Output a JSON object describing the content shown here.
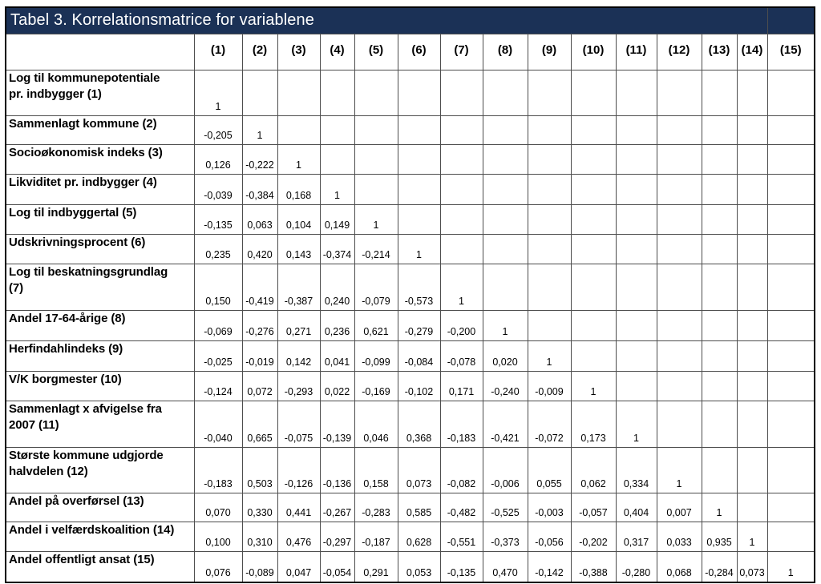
{
  "table": {
    "title": "Tabel 3. Korrelationsmatrice for variablene",
    "corner_header": "",
    "column_headers": [
      "(1)",
      "(2)",
      "(3)",
      "(4)",
      "(5)",
      "(6)",
      "(7)",
      "(8)",
      "(9)",
      "(10)",
      "(11)",
      "(12)",
      "(13)",
      "(14)",
      "(15)"
    ],
    "rows": [
      {
        "label": "Log til kommunepotentiale\npr. indbygger (1)",
        "values": [
          "1"
        ]
      },
      {
        "label": "Sammenlagt kommune (2)",
        "values": [
          "-0,205",
          "1"
        ]
      },
      {
        "label": "Socioøkonomisk indeks (3)",
        "values": [
          "0,126",
          "-0,222",
          "1"
        ]
      },
      {
        "label": "Likviditet pr. indbygger (4)",
        "values": [
          "-0,039",
          "-0,384",
          "0,168",
          "1"
        ]
      },
      {
        "label": "Log til indbyggertal (5)",
        "values": [
          "-0,135",
          "0,063",
          "0,104",
          "0,149",
          "1"
        ]
      },
      {
        "label": "Udskrivningsprocent (6)",
        "values": [
          "0,235",
          "0,420",
          "0,143",
          "-0,374",
          "-0,214",
          "1"
        ]
      },
      {
        "label": "Log til beskatningsgrundlag\n(7)",
        "values": [
          "0,150",
          "-0,419",
          "-0,387",
          "0,240",
          "-0,079",
          "-0,573",
          "1"
        ]
      },
      {
        "label": "Andel 17-64-årige (8)",
        "values": [
          "-0,069",
          "-0,276",
          "0,271",
          "0,236",
          "0,621",
          "-0,279",
          "-0,200",
          "1"
        ]
      },
      {
        "label": "Herfindahlindeks (9)",
        "values": [
          "-0,025",
          "-0,019",
          "0,142",
          "0,041",
          "-0,099",
          "-0,084",
          "-0,078",
          "0,020",
          "1"
        ]
      },
      {
        "label": "V/K borgmester (10)",
        "values": [
          "-0,124",
          "0,072",
          "-0,293",
          "0,022",
          "-0,169",
          "-0,102",
          "0,171",
          "-0,240",
          "-0,009",
          "1"
        ]
      },
      {
        "label": "Sammenlagt x afvigelse fra\n2007 (11)",
        "values": [
          "-0,040",
          "0,665",
          "-0,075",
          "-0,139",
          "0,046",
          "0,368",
          "-0,183",
          "-0,421",
          "-0,072",
          "0,173",
          "1"
        ]
      },
      {
        "label": "Største kommune udgjorde\nhalvdelen (12)",
        "values": [
          "-0,183",
          "0,503",
          "-0,126",
          "-0,136",
          "0,158",
          "0,073",
          "-0,082",
          "-0,006",
          "0,055",
          "0,062",
          "0,334",
          "1"
        ]
      },
      {
        "label": "Andel på overførsel (13)",
        "values": [
          "0,070",
          "0,330",
          "0,441",
          "-0,267",
          "-0,283",
          "0,585",
          "-0,482",
          "-0,525",
          "-0,003",
          "-0,057",
          "0,404",
          "0,007",
          "1"
        ]
      },
      {
        "label": "Andel i velfærdskoalition (14)",
        "values": [
          "0,100",
          "0,310",
          "0,476",
          "-0,297",
          "-0,187",
          "0,628",
          "-0,551",
          "-0,373",
          "-0,056",
          "-0,202",
          "0,317",
          "0,033",
          "0,935",
          "1"
        ]
      },
      {
        "label": "Andel offentligt ansat (15)",
        "values": [
          "0,076",
          "-0,089",
          "0,047",
          "-0,054",
          "0,291",
          "0,053",
          "-0,135",
          "0,470",
          "-0,142",
          "-0,388",
          "-0,280",
          "0,068",
          "-0,284",
          "0,073",
          "1"
        ]
      }
    ]
  },
  "colors": {
    "title_background": "#1b3156",
    "title_text": "#ffffff",
    "grid_line": "#4d4d4d",
    "outer_border": "#000000",
    "cell_background": "#ffffff",
    "text": "#000000"
  }
}
